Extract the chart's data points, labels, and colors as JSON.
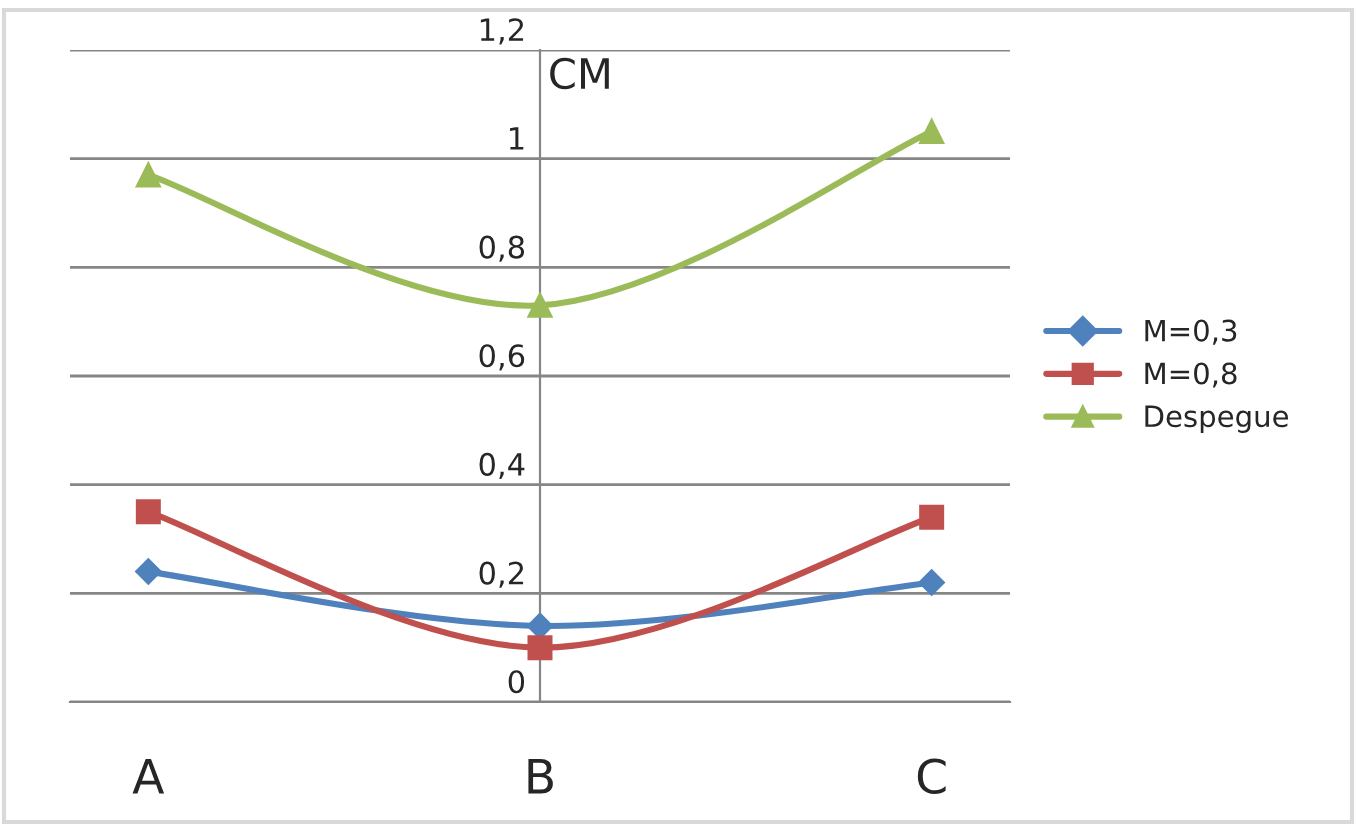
{
  "chart_data": {
    "type": "line",
    "ylabel": "CM",
    "categories": [
      "A",
      "B",
      "C"
    ],
    "series": [
      {
        "name": "M=0,3",
        "color": "#4f81bd",
        "marker": "diamond",
        "values": [
          0.24,
          0.14,
          0.22
        ]
      },
      {
        "name": "M=0,8",
        "color": "#c0504d",
        "marker": "square",
        "values": [
          0.35,
          0.1,
          0.34
        ]
      },
      {
        "name": "Despegue",
        "color": "#9bbb59",
        "marker": "triangle",
        "values": [
          0.97,
          0.73,
          1.05
        ]
      }
    ],
    "ylim": [
      0,
      1.2
    ],
    "yticks": [
      {
        "value": 0,
        "label": "0"
      },
      {
        "value": 0.2,
        "label": "0,2"
      },
      {
        "value": 0.4,
        "label": "0,4"
      },
      {
        "value": 0.6,
        "label": "0,6"
      },
      {
        "value": 0.8,
        "label": "0,8"
      },
      {
        "value": 1,
        "label": "1"
      },
      {
        "value": 1.2,
        "label": "1,2"
      }
    ],
    "grid": "y",
    "legend": "right"
  }
}
